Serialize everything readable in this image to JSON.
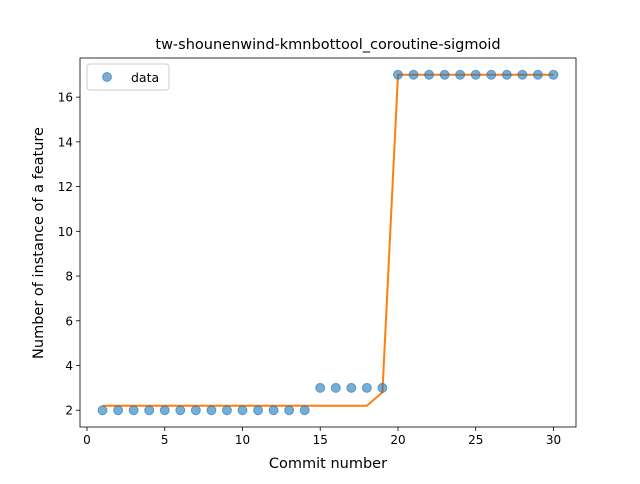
{
  "chart_data": {
    "type": "scatter",
    "title": "tw-shounenwind-kmnbottool_coroutine-sigmoid",
    "xlabel": "Commit number",
    "ylabel": "Number of instance of a feature",
    "xlim": [
      -0.45,
      31.45
    ],
    "ylim": [
      1.25,
      17.75
    ],
    "xticks": [
      0,
      5,
      10,
      15,
      20,
      25,
      30
    ],
    "yticks": [
      2,
      4,
      6,
      8,
      10,
      12,
      14,
      16
    ],
    "grid": false,
    "legend_position": "top-left",
    "series": [
      {
        "name": "data",
        "kind": "scatter",
        "color": "#1f77b4",
        "x": [
          1,
          2,
          3,
          4,
          5,
          6,
          7,
          8,
          9,
          10,
          11,
          12,
          13,
          14,
          15,
          16,
          17,
          18,
          19,
          20,
          21,
          22,
          23,
          24,
          25,
          26,
          27,
          28,
          29,
          30
        ],
        "y": [
          2,
          2,
          2,
          2,
          2,
          2,
          2,
          2,
          2,
          2,
          2,
          2,
          2,
          2,
          3,
          3,
          3,
          3,
          3,
          17,
          17,
          17,
          17,
          17,
          17,
          17,
          17,
          17,
          17,
          17
        ]
      },
      {
        "kind": "line",
        "color": "#ff7f0e",
        "x": [
          1,
          2,
          3,
          4,
          5,
          6,
          7,
          8,
          9,
          10,
          11,
          12,
          13,
          14,
          15,
          16,
          17,
          18,
          19,
          20,
          21,
          22,
          23,
          24,
          25,
          26,
          27,
          28,
          29,
          30
        ],
        "y": [
          2.2,
          2.2,
          2.2,
          2.2,
          2.2,
          2.2,
          2.2,
          2.2,
          2.2,
          2.2,
          2.2,
          2.2,
          2.2,
          2.2,
          2.2,
          2.2,
          2.2,
          2.2,
          2.8,
          17,
          17,
          17,
          17,
          17,
          17,
          17,
          17,
          17,
          17,
          17
        ]
      }
    ]
  }
}
